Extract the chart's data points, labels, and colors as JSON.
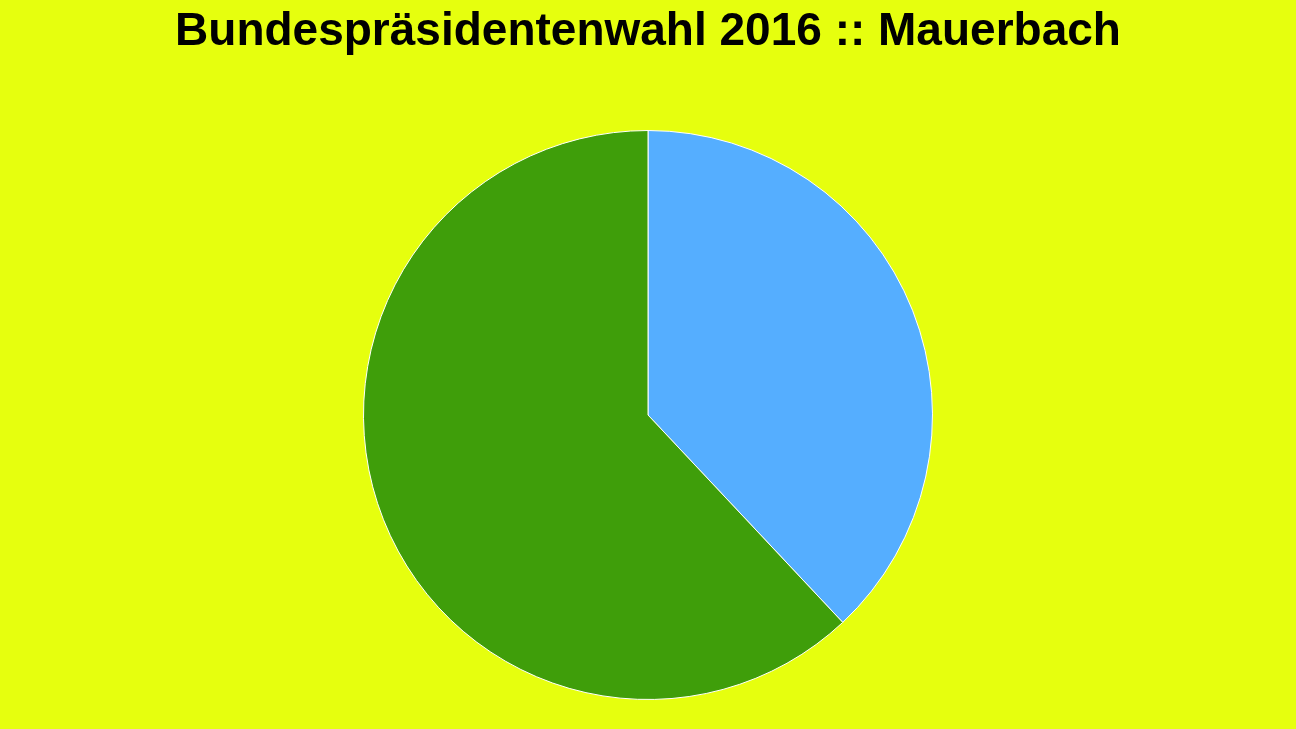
{
  "chart_data": {
    "type": "pie",
    "title": "Bundespräsidentenwahl 2016 :: Mauerbach",
    "categories": [
      null,
      null
    ],
    "values": [
      38,
      62
    ],
    "colors": [
      "#55aeff",
      "#3f9e0a"
    ],
    "legend": false
  }
}
